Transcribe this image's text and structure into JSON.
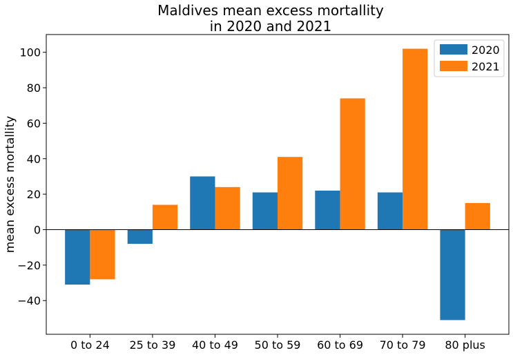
{
  "chart_data": {
    "type": "bar",
    "title_lines": [
      "Maldives mean excess mortallity",
      "in 2020 and 2021"
    ],
    "xlabel": "",
    "ylabel": "mean excess mortallity",
    "categories": [
      "0 to 24",
      "25 to 39",
      "40 to 49",
      "50 to 59",
      "60 to 69",
      "70 to 79",
      "80 plus"
    ],
    "series": [
      {
        "name": "2020",
        "color": "#1f77b4",
        "values": [
          -31,
          -8,
          30,
          21,
          22,
          21,
          -51
        ]
      },
      {
        "name": "2021",
        "color": "#ff7f0e",
        "values": [
          -28,
          14,
          24,
          41,
          74,
          102,
          15
        ]
      }
    ],
    "ylim": [
      -59,
      110
    ],
    "yticks": [
      -40,
      -20,
      0,
      20,
      40,
      60,
      80,
      100
    ],
    "ytick_labels": [
      "−40",
      "−20",
      "0",
      "20",
      "40",
      "60",
      "80",
      "100"
    ],
    "zero_line": true,
    "grid": false,
    "legend_position": "top-right"
  }
}
